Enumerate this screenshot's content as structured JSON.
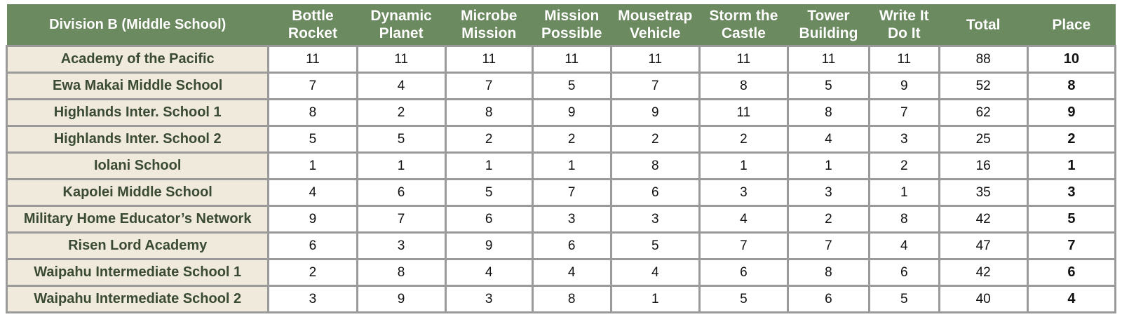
{
  "table": {
    "headers": [
      "Division B (Middle School)",
      "Bottle Rocket",
      "Dynamic Planet",
      "Microbe Mission",
      "Mission Possible",
      "Mousetrap Vehicle",
      "Storm the Castle",
      "Tower Building",
      "Write It Do It",
      "Total",
      "Place"
    ],
    "rows": [
      {
        "school": "Academy of the Pacific",
        "scores": [
          "11",
          "11",
          "11",
          "11",
          "11",
          "11",
          "11",
          "11"
        ],
        "total": "88",
        "place": "10"
      },
      {
        "school": "Ewa Makai Middle School",
        "scores": [
          "7",
          "4",
          "7",
          "5",
          "7",
          "8",
          "5",
          "9"
        ],
        "total": "52",
        "place": "8"
      },
      {
        "school": "Highlands Inter. School 1",
        "scores": [
          "8",
          "2",
          "8",
          "9",
          "9",
          "11",
          "8",
          "7"
        ],
        "total": "62",
        "place": "9"
      },
      {
        "school": "Highlands Inter. School 2",
        "scores": [
          "5",
          "5",
          "2",
          "2",
          "2",
          "2",
          "4",
          "3"
        ],
        "total": "25",
        "place": "2"
      },
      {
        "school": "Iolani School",
        "scores": [
          "1",
          "1",
          "1",
          "1",
          "8",
          "1",
          "1",
          "2"
        ],
        "total": "16",
        "place": "1"
      },
      {
        "school": "Kapolei Middle School",
        "scores": [
          "4",
          "6",
          "5",
          "7",
          "6",
          "3",
          "3",
          "1"
        ],
        "total": "35",
        "place": "3"
      },
      {
        "school": "Military Home Educator’s Network",
        "scores": [
          "9",
          "7",
          "6",
          "3",
          "3",
          "4",
          "2",
          "8"
        ],
        "total": "42",
        "place": "5"
      },
      {
        "school": "Risen Lord Academy",
        "scores": [
          "6",
          "3",
          "9",
          "6",
          "5",
          "7",
          "7",
          "4"
        ],
        "total": "47",
        "place": "7"
      },
      {
        "school": "Waipahu Intermediate School 1",
        "scores": [
          "2",
          "8",
          "4",
          "4",
          "4",
          "6",
          "8",
          "6"
        ],
        "total": "42",
        "place": "6"
      },
      {
        "school": "Waipahu Intermediate School 2",
        "scores": [
          "3",
          "9",
          "3",
          "8",
          "1",
          "5",
          "6",
          "5"
        ],
        "total": "40",
        "place": "4"
      }
    ]
  },
  "colors": {
    "header_bg": "#6b8a5f",
    "header_text": "#ffffff",
    "school_cell_bg": "#efeadb",
    "school_text": "#3a4a33",
    "grid_line": "#9a9a9a"
  }
}
